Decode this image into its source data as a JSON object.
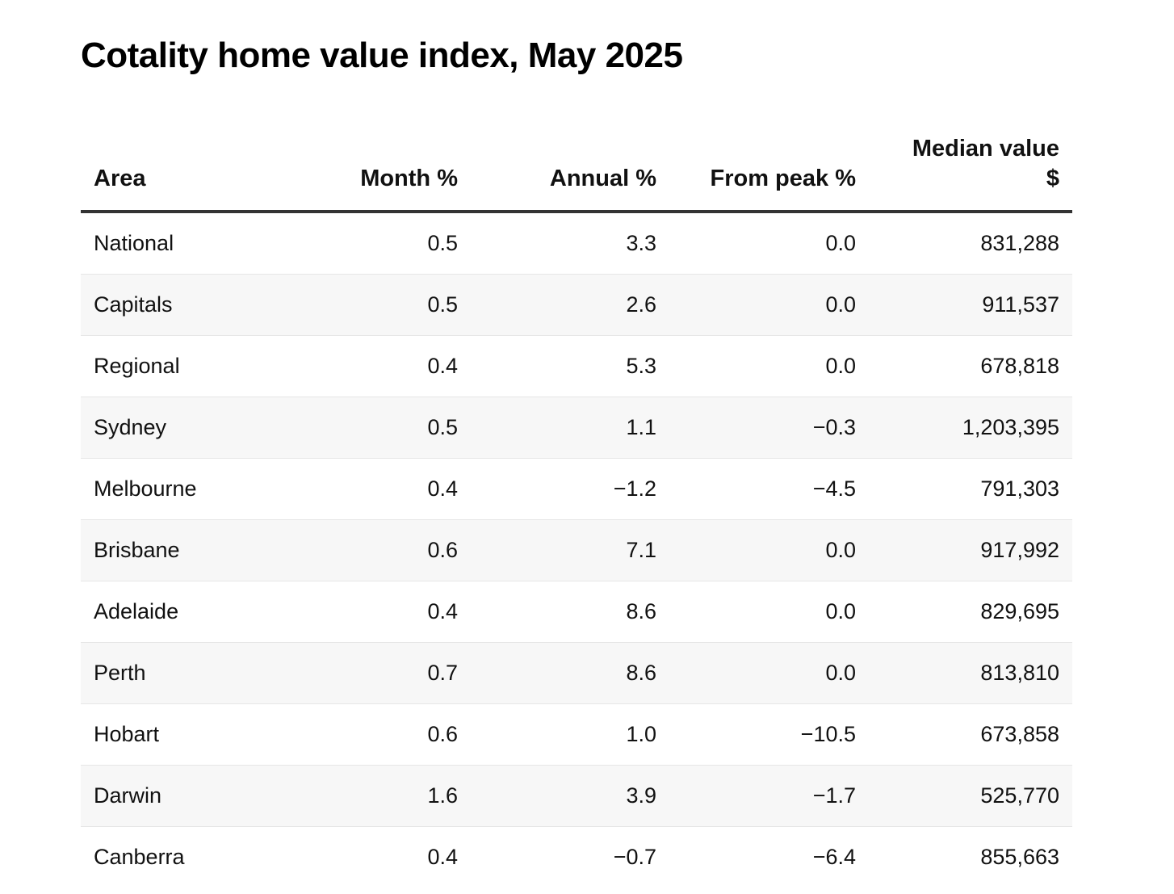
{
  "title": "Cotality home value index, May 2025",
  "table": {
    "headers": {
      "area": "Area",
      "month": "Month %",
      "annual": "Annual %",
      "from_peak": "From peak %",
      "median_line1": "Median value",
      "median_line2": "$"
    },
    "rows": [
      {
        "area": "National",
        "month": "0.5",
        "annual": "3.3",
        "from_peak": "0.0",
        "median": "831,288"
      },
      {
        "area": "Capitals",
        "month": "0.5",
        "annual": "2.6",
        "from_peak": "0.0",
        "median": "911,537"
      },
      {
        "area": "Regional",
        "month": "0.4",
        "annual": "5.3",
        "from_peak": "0.0",
        "median": "678,818"
      },
      {
        "area": "Sydney",
        "month": "0.5",
        "annual": "1.1",
        "from_peak": "−0.3",
        "median": "1,203,395"
      },
      {
        "area": "Melbourne",
        "month": "0.4",
        "annual": "−1.2",
        "from_peak": "−4.5",
        "median": "791,303"
      },
      {
        "area": "Brisbane",
        "month": "0.6",
        "annual": "7.1",
        "from_peak": "0.0",
        "median": "917,992"
      },
      {
        "area": "Adelaide",
        "month": "0.4",
        "annual": "8.6",
        "from_peak": "0.0",
        "median": "829,695"
      },
      {
        "area": "Perth",
        "month": "0.7",
        "annual": "8.6",
        "from_peak": "0.0",
        "median": "813,810"
      },
      {
        "area": "Hobart",
        "month": "0.6",
        "annual": "1.0",
        "from_peak": "−10.5",
        "median": "673,858"
      },
      {
        "area": "Darwin",
        "month": "1.6",
        "annual": "3.9",
        "from_peak": "−1.7",
        "median": "525,770"
      },
      {
        "area": "Canberra",
        "month": "0.4",
        "annual": "−0.7",
        "from_peak": "−6.4",
        "median": "855,663"
      }
    ]
  }
}
